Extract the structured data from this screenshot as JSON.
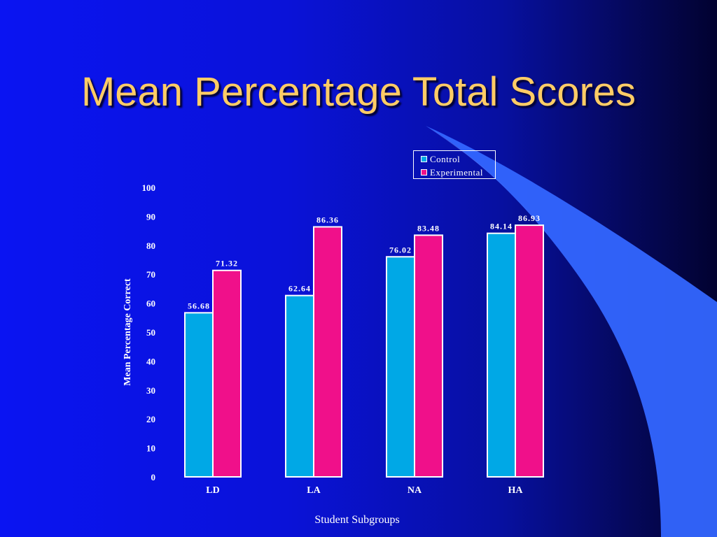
{
  "slide": {
    "title": "Mean Percentage Total Scores"
  },
  "colors": {
    "control": "#00a8e6",
    "experimental": "#f0108a",
    "title": "#ffcc66",
    "swoosh": "#3366ff"
  },
  "chart_data": {
    "type": "bar",
    "categories": [
      "LD",
      "LA",
      "NA",
      "HA"
    ],
    "series": [
      {
        "name": "Control",
        "values": [
          56.68,
          62.64,
          76.02,
          84.14
        ],
        "color": "#00a8e6"
      },
      {
        "name": "Experimental",
        "values": [
          71.32,
          86.36,
          83.48,
          86.93
        ],
        "color": "#f0108a"
      }
    ],
    "value_labels": {
      "Control": [
        "56.68",
        "62.64",
        "76.02",
        "84.14"
      ],
      "Experimental": [
        "71.32",
        "86.36",
        "83.48",
        "86.93"
      ]
    },
    "xlabel": "Student Subgroups",
    "ylabel": "Mean Percentage Correct",
    "ylim": [
      0,
      100
    ],
    "yticks": [
      0,
      10,
      20,
      30,
      40,
      50,
      60,
      70,
      80,
      90,
      100
    ],
    "grid": false,
    "legend_position": "top-right",
    "legend": [
      "Control",
      "Experimental"
    ]
  }
}
